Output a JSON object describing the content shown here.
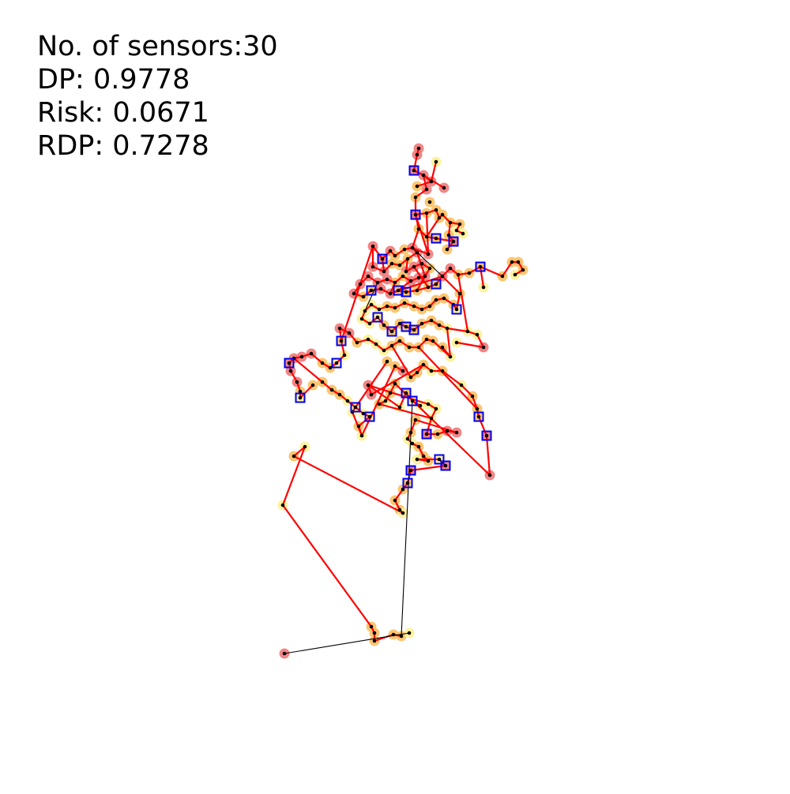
{
  "stats": {
    "sensors_line": "No. of sensors:30",
    "dp_line": "DP: 0.9778",
    "risk_line": "Risk:  0.0671",
    "rdp_line": "RDP: 0.7278"
  },
  "colors": {
    "background": "#ffffff",
    "pipe_monitored": "#ff0000",
    "pipe_unmonitored": "#000000",
    "node": "#000000",
    "sensor_marker": "#0000ee",
    "risk_high": "#f08080",
    "risk_medium": "#fbc36a",
    "risk_low": "#fdf19c"
  },
  "legend": []
}
